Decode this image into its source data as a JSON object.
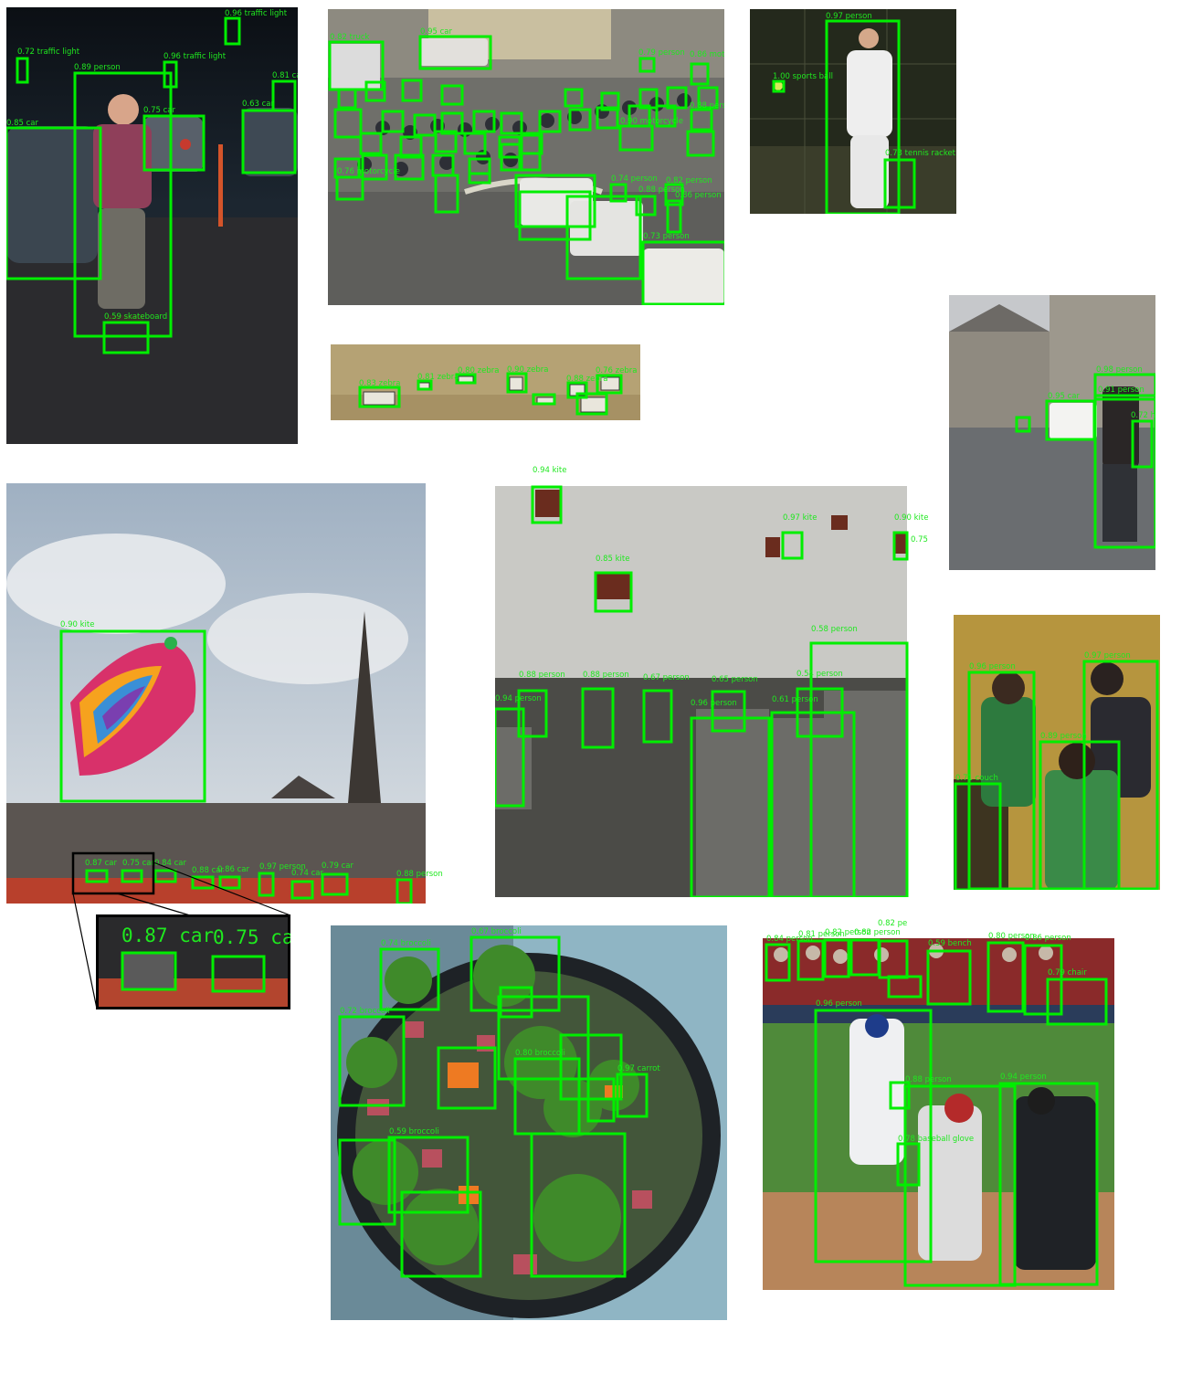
{
  "colors": {
    "box": "#00ee00",
    "label": "#1fe81f",
    "background": "#ffffff"
  },
  "panels": {
    "skateboarder": {
      "labels": [
        "0.96  traffic light",
        "0.72  traffic light",
        "0.96  traffic light",
        "0.89  person",
        "0.81  car",
        "0.75  car",
        "0.63  car",
        "0.85  car",
        "0.59  skateboard"
      ]
    },
    "traffic": {
      "labels": [
        "0.82  truck",
        "0.95  car",
        "0.79  person",
        "0.86  motorcycle",
        "0.90  motorcycle",
        "0.88  person",
        "0.76  motorcycle",
        "0.74  person",
        "0.82  person",
        "0.86  person",
        "0.88  person",
        "0.73  person"
      ]
    },
    "tennis": {
      "labels": [
        "0.97  person",
        "1.00  sports ball",
        "0.73  tennis racket"
      ]
    },
    "zebras": {
      "labels": [
        "0.83  zebra",
        "0.81  zebra",
        "0.80  zebra",
        "0.90  zebra",
        "0.88  zebra",
        "0.76  zebra"
      ]
    },
    "street": {
      "labels": [
        "0.98  person",
        "0.91  person",
        "0.72  handbag",
        "0.95  car"
      ]
    },
    "spire": {
      "labels": [
        "0.90  kite",
        "0.87  car",
        "0.75  car",
        "0.84  car",
        "0.88  car",
        "0.86  car",
        "0.97  person",
        "0.74  car",
        "0.79  car",
        "0.88  person"
      ],
      "inset_labels": [
        "0.87  car",
        "0.75  ca"
      ]
    },
    "kites_crowd": {
      "labels": [
        "0.94  kite",
        "0.97  kite",
        "0.90  kite",
        "0.75",
        "0.85  kite",
        "0.58  person",
        "0.88  person",
        "0.88  person",
        "0.67  person",
        "0.65  person",
        "0.54  person",
        "0.94  person",
        "0.96  person",
        "0.61  person"
      ]
    },
    "friends": {
      "labels": [
        "0.96  person",
        "0.97  person",
        "0.89  person",
        "0.71  couch"
      ]
    },
    "broccoli": {
      "labels": [
        "0.74  broccoli",
        "0.67  broccoli",
        "0.72  broccoli",
        "0.80  broccoli",
        "0.97  carrot",
        "0.59  broccoli"
      ]
    },
    "baseball": {
      "labels": [
        "0.84  person",
        "0.81  person",
        "0.82  person",
        "0.82  person",
        "0.82  pe",
        "0.59  bench",
        "0.80  person",
        "0.86  person",
        "0.79  chair",
        "0.96  person",
        "0.94  person",
        "0.88  person",
        "0.78  baseball glove"
      ]
    }
  }
}
